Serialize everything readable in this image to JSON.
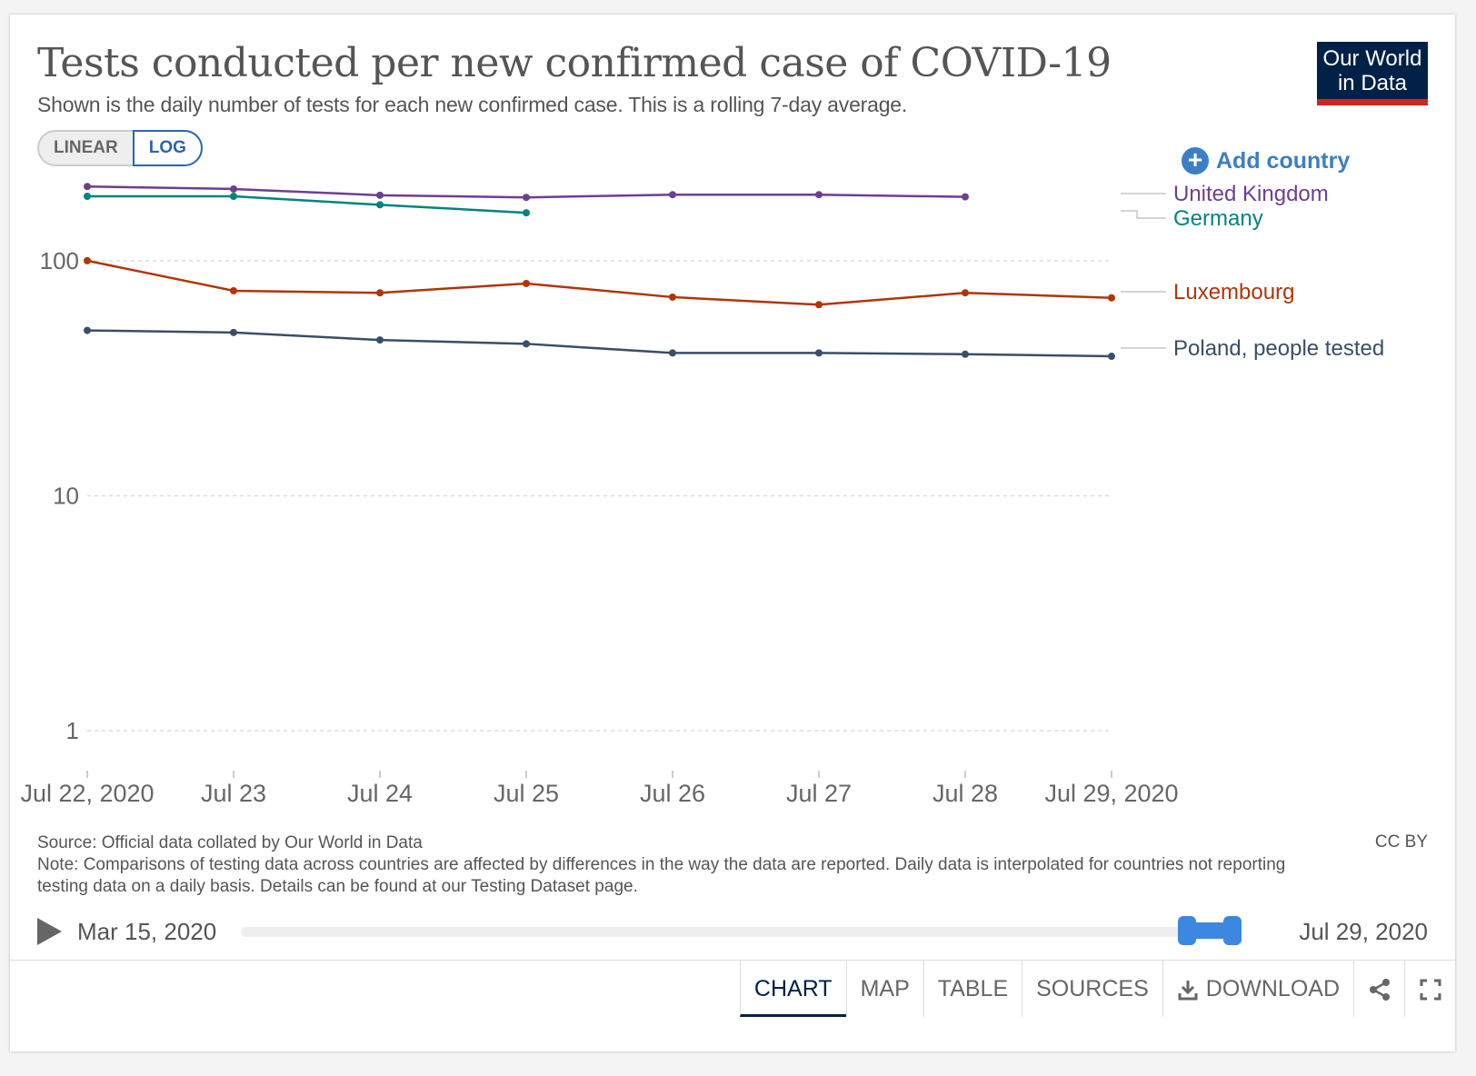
{
  "header": {
    "title": "Tests conducted per new confirmed case of COVID-19",
    "subtitle": "Shown is the daily number of tests for each new confirmed case. This is a rolling 7-day average.",
    "logo_line1": "Our World",
    "logo_line2": "in Data"
  },
  "scale_toggle": {
    "linear_label": "LINEAR",
    "log_label": "LOG",
    "selected": "LOG"
  },
  "add_country_label": "Add country",
  "chart_data": {
    "type": "line",
    "title": "Tests conducted per new confirmed case of COVID-19",
    "y_scale": "log",
    "ylim": [
      1,
      250
    ],
    "y_ticks": [
      1,
      10,
      100
    ],
    "y_tick_labels": [
      "1",
      "10",
      "100"
    ],
    "x": [
      "2020-07-22",
      "2020-07-23",
      "2020-07-24",
      "2020-07-25",
      "2020-07-26",
      "2020-07-27",
      "2020-07-28",
      "2020-07-29"
    ],
    "x_tick_labels": [
      "Jul 22, 2020",
      "Jul 23",
      "Jul 24",
      "Jul 25",
      "Jul 26",
      "Jul 27",
      "Jul 28",
      "Jul 29, 2020"
    ],
    "grid": "horizontal-dashed",
    "legend": "right, inline labels",
    "series": [
      {
        "name": "United Kingdom",
        "color": "#6d3e91",
        "values": [
          207,
          202,
          190,
          186,
          191,
          191,
          187,
          null
        ]
      },
      {
        "name": "Germany",
        "color": "#00847e",
        "values": [
          188,
          188,
          173,
          160,
          null,
          null,
          null,
          null
        ]
      },
      {
        "name": "Luxembourg",
        "color": "#b13507",
        "values": [
          100,
          74.5,
          73,
          80,
          70,
          65,
          73,
          69.5
        ]
      },
      {
        "name": "Poland, people tested",
        "color": "#3a4e68",
        "values": [
          50.5,
          49.5,
          46,
          44.3,
          40.5,
          40.5,
          40,
          39.2
        ]
      }
    ]
  },
  "footer": {
    "source": "Source: Official data collated by Our World in Data",
    "note": "Note: Comparisons of testing data across countries are affected by differences in the way the data are reported. Daily data is interpolated for countries not reporting testing data on a daily basis. Details can be found at our Testing Dataset page.",
    "license": "CC BY"
  },
  "timeline": {
    "start_label": "Mar 15, 2020",
    "end_label": "Jul 29, 2020"
  },
  "tabs": {
    "chart": "CHART",
    "map": "MAP",
    "table": "TABLE",
    "sources": "SOURCES",
    "download": "DOWNLOAD",
    "active": "CHART",
    "share_icon": "share-icon",
    "fullscreen_icon": "fullscreen-icon",
    "download_icon": "download-icon"
  }
}
